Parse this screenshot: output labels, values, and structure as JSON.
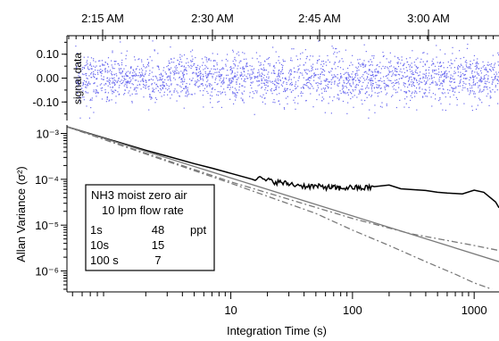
{
  "chart_data": [
    {
      "type": "scatter",
      "ylabel": "signal data",
      "x_time_ticks": [
        "2:15 AM",
        "2:30 AM",
        "2:45 AM",
        "3:00 AM"
      ],
      "ylim": [
        -0.17,
        0.17
      ],
      "yticks": [
        {
          "value": 0.1,
          "label": "0.10"
        },
        {
          "value": 0.0,
          "label": "0.00"
        },
        {
          "value": -0.1,
          "label": "-0.10"
        }
      ],
      "series": [
        {
          "color": "#6b6bef",
          "noise_sigma": 0.05
        }
      ]
    },
    {
      "type": "line",
      "xlabel": "Integration Time (s)",
      "ylabel": "Allan Variance (σ²)",
      "x_scale": "log",
      "y_scale": "log",
      "xlim": [
        0.45,
        1600
      ],
      "ylim": [
        4e-07,
        0.0014
      ],
      "xticks": [
        {
          "value": 10,
          "label": "10"
        },
        {
          "value": 100,
          "label": "100"
        },
        {
          "value": 1000,
          "label": "1000"
        }
      ],
      "yticks": [
        {
          "value": 0.001,
          "label": "10⁻³"
        },
        {
          "value": 0.0001,
          "label": "10⁻⁴"
        },
        {
          "value": 1e-05,
          "label": "10⁻⁵"
        },
        {
          "value": 1e-06,
          "label": "10⁻⁶"
        }
      ],
      "series": [
        {
          "style": "solid",
          "color": "#000000",
          "x": [
            0.45,
            1,
            2,
            3,
            5,
            7,
            10,
            15,
            20,
            25,
            30,
            40,
            50,
            60,
            70,
            80,
            100,
            120,
            150,
            200,
            250,
            300,
            400,
            500,
            600,
            800,
            1000,
            1200,
            1500,
            1600
          ],
          "y": [
            0.0014,
            0.00074,
            0.00043,
            0.00032,
            0.00022,
            0.000175,
            0.000135,
            0.000112,
            9.5e-05,
            8.6e-05,
            8e-05,
            7.2e-05,
            7e-05,
            6.8e-05,
            6.6e-05,
            6.4e-05,
            6.7e-05,
            6.4e-05,
            6.9e-05,
            7.5e-05,
            6.2e-05,
            6e-05,
            5.7e-05,
            5.2e-05,
            5e-05,
            4.8e-05,
            5.8e-05,
            5.2e-05,
            3.2e-05,
            2.4e-05
          ]
        },
        {
          "style": "solid",
          "color": "#7a7a7a",
          "x": [
            0.45,
            1600
          ],
          "y": [
            0.0014,
            1.6e-06
          ]
        },
        {
          "style": "dashdot",
          "color": "#7a7a7a",
          "x": [
            0.45,
            10,
            100,
            300,
            1000,
            1600
          ],
          "y": [
            0.0014,
            8.8e-05,
            1.4e-05,
            6.5e-06,
            3.6e-06,
            2.8e-06
          ]
        },
        {
          "style": "dashdot",
          "color": "#7a7a7a",
          "x": [
            0.45,
            10,
            50,
            100,
            200,
            400,
            700,
            1000,
            1400
          ],
          "y": [
            0.0014,
            8.2e-05,
            1.8e-05,
            7.8e-06,
            3.6e-06,
            1.6e-06,
            8.5e-07,
            5.5e-07,
            4e-07
          ]
        }
      ],
      "annotation": {
        "lines": [
          "NH3 moist zero air",
          "10 lpm flow rate"
        ],
        "rows": [
          {
            "time": "1s",
            "value": "48",
            "unit": "ppt"
          },
          {
            "time": "10s",
            "value": "15",
            "unit": ""
          },
          {
            "time": "100 s",
            "value": "7",
            "unit": ""
          }
        ]
      }
    }
  ]
}
